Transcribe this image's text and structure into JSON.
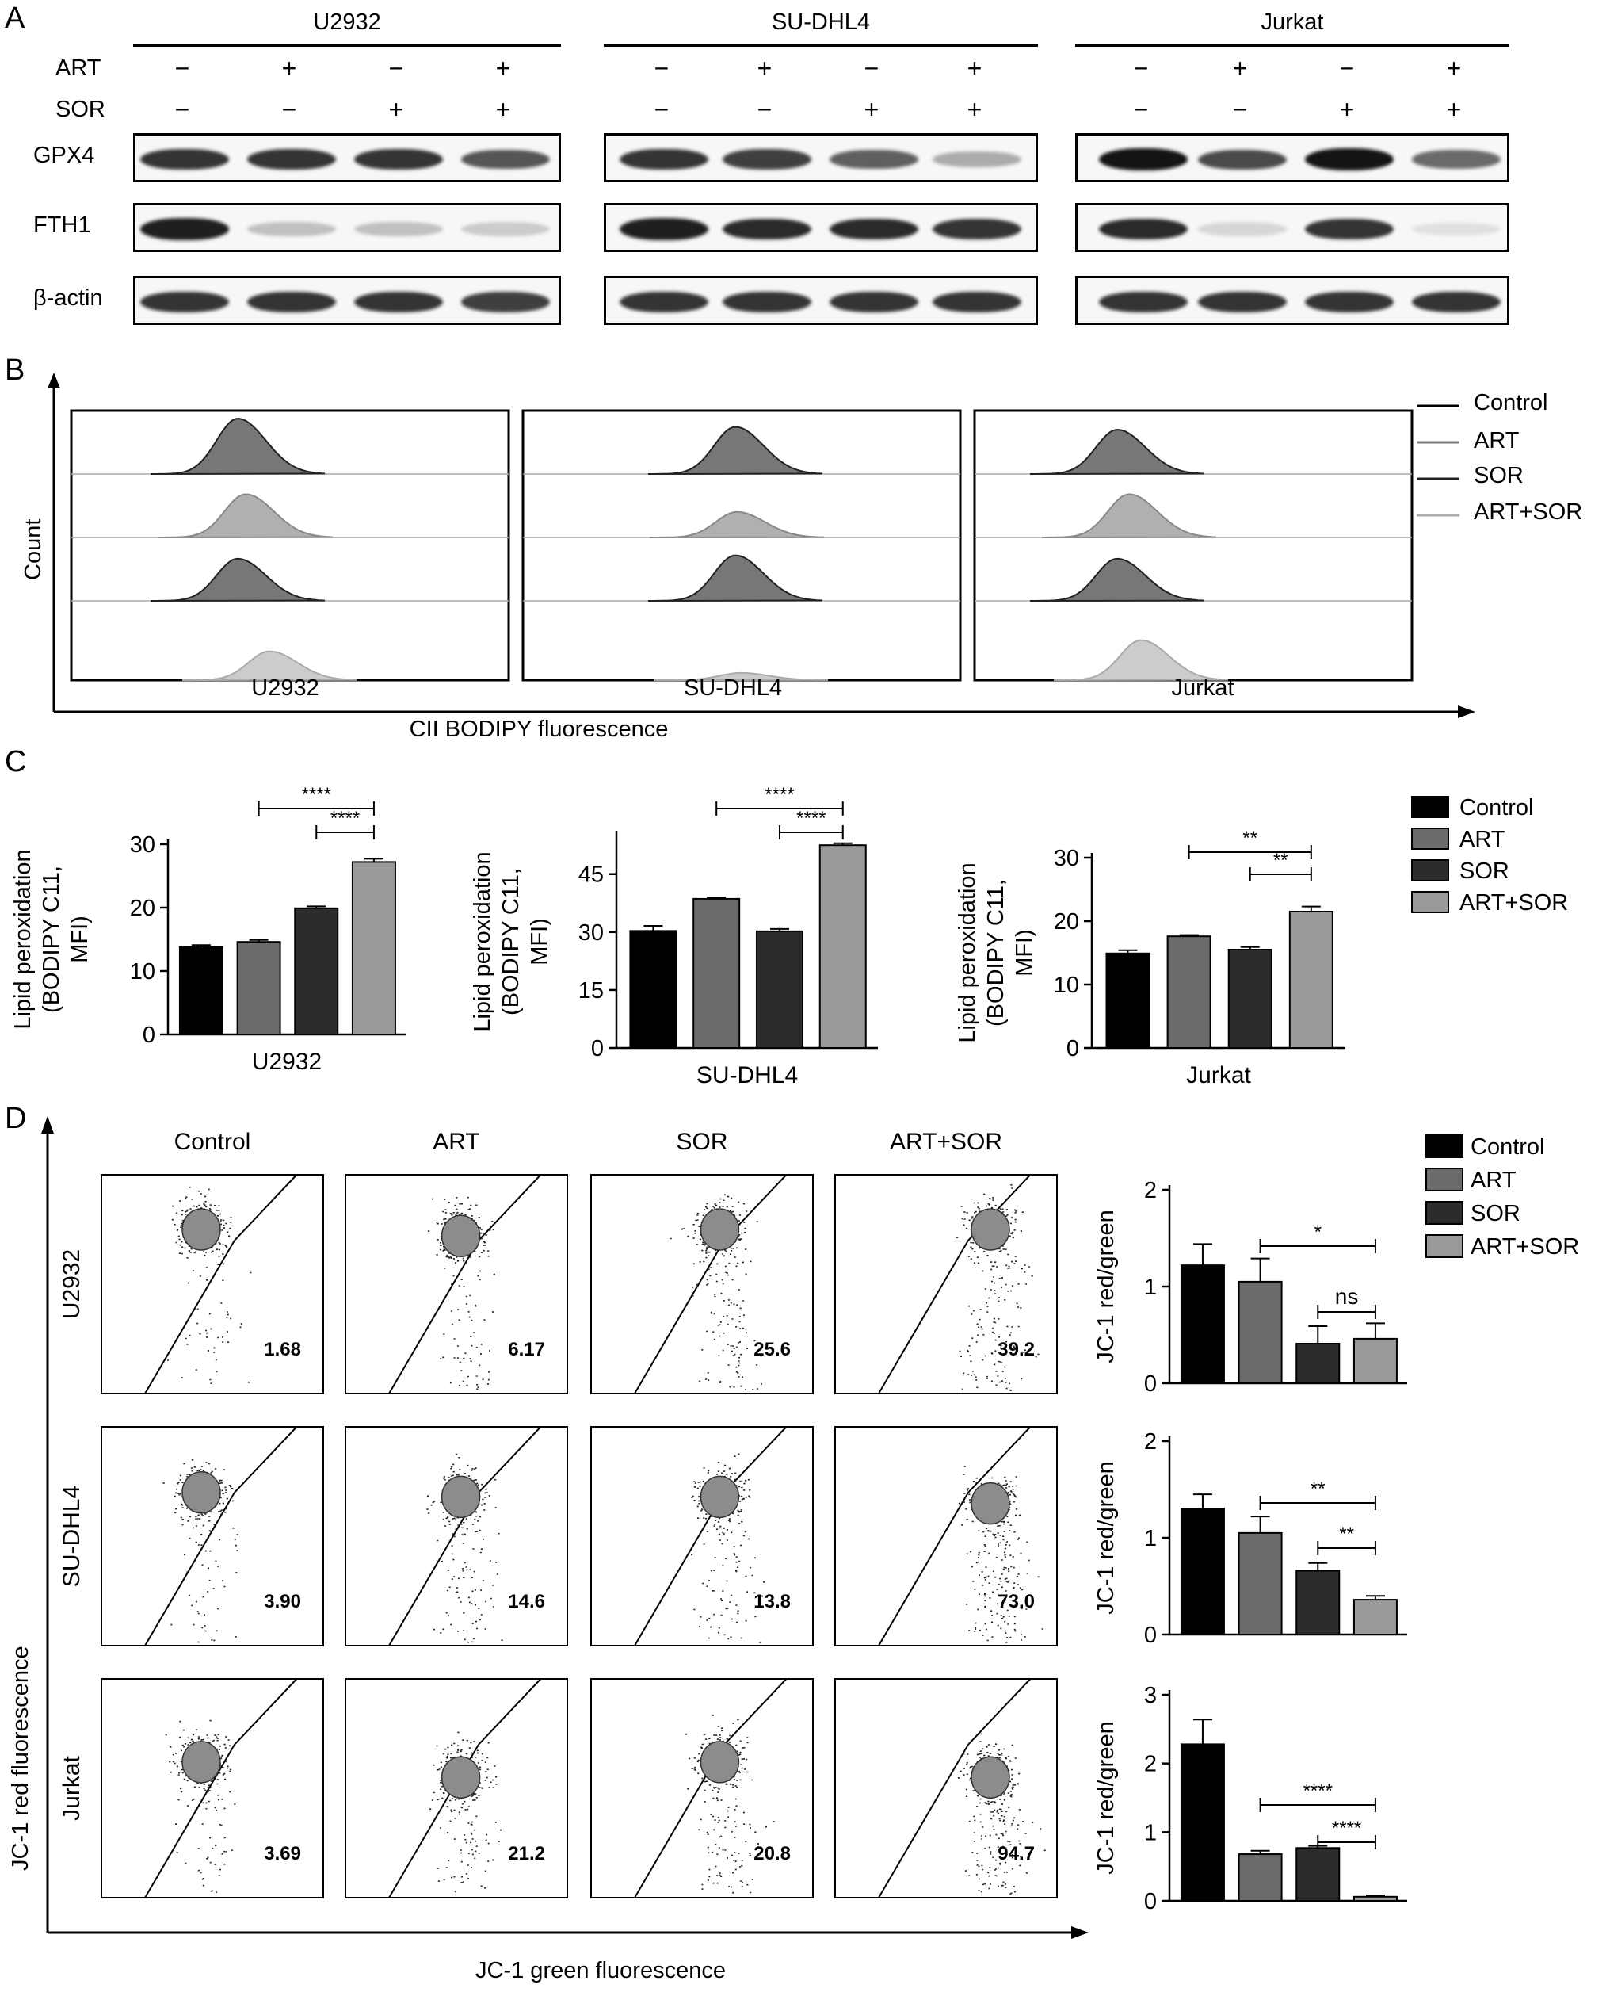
{
  "panels": {
    "a": "A",
    "b": "B",
    "c": "C",
    "d": "D"
  },
  "blot": {
    "cell_lines": [
      "U2932",
      "SU-DHL4",
      "Jurkat"
    ],
    "row_labels": {
      "art": "ART",
      "sor": "SOR"
    },
    "art_signs": [
      "−",
      "+",
      "−",
      "+"
    ],
    "sor_signs": [
      "−",
      "−",
      "+",
      "+"
    ],
    "proteins": [
      "GPX4",
      "FTH1",
      "β-actin"
    ],
    "band_intensity": {
      "U2932": {
        "GPX4": [
          0.85,
          0.85,
          0.85,
          0.7
        ],
        "FTH1": [
          0.95,
          0.2,
          0.2,
          0.15
        ],
        "β-actin": [
          0.85,
          0.85,
          0.85,
          0.8
        ]
      },
      "SU-DHL4": {
        "GPX4": [
          0.85,
          0.8,
          0.65,
          0.3
        ],
        "FTH1": [
          0.95,
          0.9,
          0.9,
          0.85
        ],
        "β-actin": [
          0.85,
          0.85,
          0.85,
          0.85
        ]
      },
      "Jurkat": {
        "GPX4": [
          1.0,
          0.75,
          1.0,
          0.6
        ],
        "FTH1": [
          0.9,
          0.1,
          0.85,
          0.05
        ],
        "β-actin": [
          0.85,
          0.85,
          0.85,
          0.85
        ]
      }
    }
  },
  "flow_hist": {
    "y_label": "Count",
    "x_label": "CII BODIPY fluorescence",
    "legend": [
      "Control",
      "ART",
      "SOR",
      "ART+SOR"
    ],
    "panels": [
      "U2932",
      "SU-DHL4",
      "Jurkat"
    ]
  },
  "lipid_chart": {
    "legend": [
      "Control",
      "ART",
      "SOR",
      "ART+SOR"
    ],
    "colors": [
      "#000000",
      "#6b6b6b",
      "#2c2c2c",
      "#9a9a9a"
    ],
    "ylabel_lines": [
      "Lipid peroxidation",
      "(BODIPY C11,",
      "MFI)"
    ]
  },
  "jc1_flow": {
    "columns": [
      "Control",
      "ART",
      "SOR",
      "ART+SOR"
    ],
    "rows": [
      "U2932",
      "SU-DHL4",
      "Jurkat"
    ],
    "percentages": [
      [
        "1.68",
        "6.17",
        "25.6",
        "39.2"
      ],
      [
        "3.90",
        "14.6",
        "13.8",
        "73.0"
      ],
      [
        "3.69",
        "21.2",
        "20.8",
        "94.7"
      ]
    ],
    "y_label": "JC-1 red fluorescence",
    "x_label": "JC-1 green fluorescence"
  },
  "jc1_chart": {
    "legend": [
      "Control",
      "ART",
      "SOR",
      "ART+SOR"
    ],
    "ylabel": "JC-1 red/green"
  },
  "chart_data": [
    {
      "type": "bar",
      "xlabel": "U2932",
      "ylabel": "Lipid peroxidation (BODIPY C11, MFI)",
      "categories": [
        "Control",
        "ART",
        "SOR",
        "ART+SOR"
      ],
      "values": [
        13.8,
        14.6,
        19.9,
        27.2
      ],
      "errors": [
        0.3,
        0.3,
        0.3,
        0.5
      ],
      "ylim": [
        0,
        30
      ],
      "yticks": [
        0,
        10,
        20,
        30
      ],
      "significance": [
        {
          "from": 1,
          "to": 3,
          "label": "****"
        },
        {
          "from": 2,
          "to": 3,
          "label": "****"
        }
      ]
    },
    {
      "type": "bar",
      "xlabel": "SU-DHL4",
      "ylabel": "Lipid peroxidation (BODIPY C11, MFI)",
      "categories": [
        "Control",
        "ART",
        "SOR",
        "ART+SOR"
      ],
      "values": [
        30.3,
        38.6,
        30.2,
        52.5
      ],
      "errors": [
        1.3,
        0.4,
        0.6,
        0.5
      ],
      "ylim": [
        0,
        55
      ],
      "yticks": [
        0,
        15,
        30,
        45
      ],
      "significance": [
        {
          "from": 1,
          "to": 3,
          "label": "****"
        },
        {
          "from": 2,
          "to": 3,
          "label": "****"
        }
      ]
    },
    {
      "type": "bar",
      "xlabel": "Jurkat",
      "ylabel": "Lipid peroxidation (BODIPY C11, MFI)",
      "categories": [
        "Control",
        "ART",
        "SOR",
        "ART+SOR"
      ],
      "values": [
        14.9,
        17.6,
        15.5,
        21.5
      ],
      "errors": [
        0.5,
        0.2,
        0.4,
        0.8
      ],
      "ylim": [
        0,
        30
      ],
      "yticks": [
        0,
        10,
        20,
        30
      ],
      "significance": [
        {
          "from": 1,
          "to": 3,
          "label": "**"
        },
        {
          "from": 2,
          "to": 3,
          "label": "**"
        }
      ]
    },
    {
      "type": "bar",
      "ylabel": "JC-1 red/green",
      "categories": [
        "Control",
        "ART",
        "SOR",
        "ART+SOR"
      ],
      "values": [
        1.22,
        1.05,
        0.41,
        0.46
      ],
      "errors": [
        0.22,
        0.24,
        0.18,
        0.16
      ],
      "ylim": [
        0,
        2
      ],
      "yticks": [
        0,
        1,
        2
      ],
      "significance": [
        {
          "from": 1,
          "to": 3,
          "label": "*"
        },
        {
          "from": 2,
          "to": 3,
          "label": "ns"
        }
      ]
    },
    {
      "type": "bar",
      "ylabel": "JC-1 red/green",
      "categories": [
        "Control",
        "ART",
        "SOR",
        "ART+SOR"
      ],
      "values": [
        1.3,
        1.05,
        0.66,
        0.36
      ],
      "errors": [
        0.15,
        0.17,
        0.08,
        0.04
      ],
      "ylim": [
        0,
        2
      ],
      "yticks": [
        0,
        1,
        2
      ],
      "significance": [
        {
          "from": 1,
          "to": 3,
          "label": "**"
        },
        {
          "from": 2,
          "to": 3,
          "label": "**"
        }
      ]
    },
    {
      "type": "bar",
      "ylabel": "JC-1 red/green",
      "categories": [
        "Control",
        "ART",
        "SOR",
        "ART+SOR"
      ],
      "values": [
        2.28,
        0.68,
        0.77,
        0.06
      ],
      "errors": [
        0.36,
        0.05,
        0.03,
        0.02
      ],
      "ylim": [
        0,
        3
      ],
      "yticks": [
        0,
        1,
        2,
        3
      ],
      "significance": [
        {
          "from": 1,
          "to": 3,
          "label": "****"
        },
        {
          "from": 2,
          "to": 3,
          "label": "****"
        }
      ]
    }
  ]
}
